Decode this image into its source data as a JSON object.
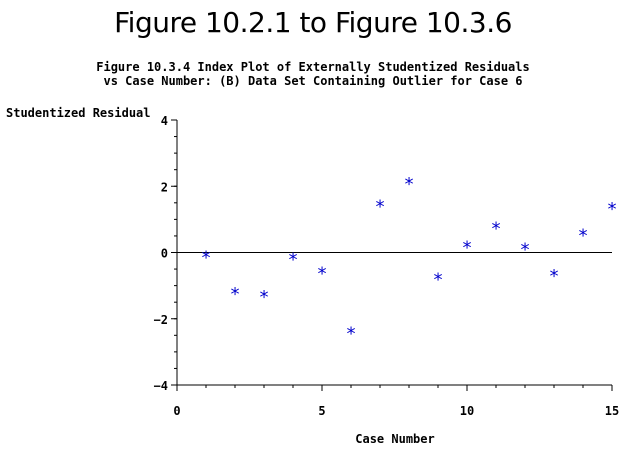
{
  "header": {
    "title": "Figure 10.2.1 to Figure 10.3.6"
  },
  "chart_data": {
    "type": "scatter",
    "title": "Figure 10.3.4 Index Plot of Externally Studentized Residuals",
    "subtitle": "vs Case Number: (B) Data Set Containing Outlier for Case 6",
    "xlabel": "Case Number",
    "ylabel": "Studentized Residual",
    "xlim": [
      0,
      15
    ],
    "ylim": [
      -4,
      4
    ],
    "x_ticks": [
      0,
      5,
      10,
      15
    ],
    "y_ticks": [
      -4,
      -2,
      0,
      2,
      4
    ],
    "x_minor_step": 1,
    "y_minor_step": 0.5,
    "reference_line_y": 0,
    "marker_symbol": "*",
    "marker_color": "#0000cc",
    "axis_color": "#000000",
    "series": [
      {
        "x": [
          1,
          2,
          3,
          4,
          5,
          6,
          7,
          8,
          9,
          10,
          11,
          12,
          13,
          14,
          15
        ],
        "y": [
          -0.12,
          -1.22,
          -1.32,
          -0.18,
          -0.6,
          -2.42,
          1.42,
          2.1,
          -0.78,
          0.18,
          0.75,
          0.12,
          -0.68,
          0.55,
          1.35
        ]
      }
    ]
  }
}
